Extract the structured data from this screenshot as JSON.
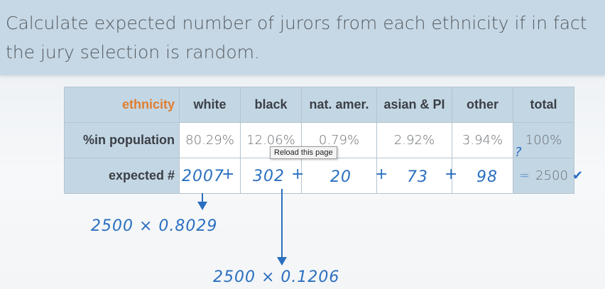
{
  "slide": {
    "title": "Calculate expected number of jurors from each ethnicity if in fact the jury selection is random."
  },
  "table": {
    "header": [
      "ethnicity",
      "white",
      "black",
      "nat. amer.",
      "asian & PI",
      "other",
      "total"
    ],
    "population_row": {
      "label": "%in population",
      "values": [
        "80.29%",
        "12.06%",
        "0.79%",
        "2.92%",
        "3.94%"
      ],
      "total": "100%"
    },
    "expected_row": {
      "label": "expected #",
      "total": "2500"
    }
  },
  "annotations": {
    "expected_values": [
      "2007",
      "302",
      "20",
      "73",
      "98"
    ],
    "plus": "+",
    "equals": "=",
    "question": "?",
    "check": "✔",
    "calc_white": "2500 × 0.8029",
    "calc_black": "2500 × 0.1206"
  },
  "tooltip": "Reload this page",
  "colors": {
    "accent": "#e07e2f",
    "header_bg": "#c3d6e4",
    "title_band": "#c6d8e5",
    "ink": "#2a6fc0"
  }
}
